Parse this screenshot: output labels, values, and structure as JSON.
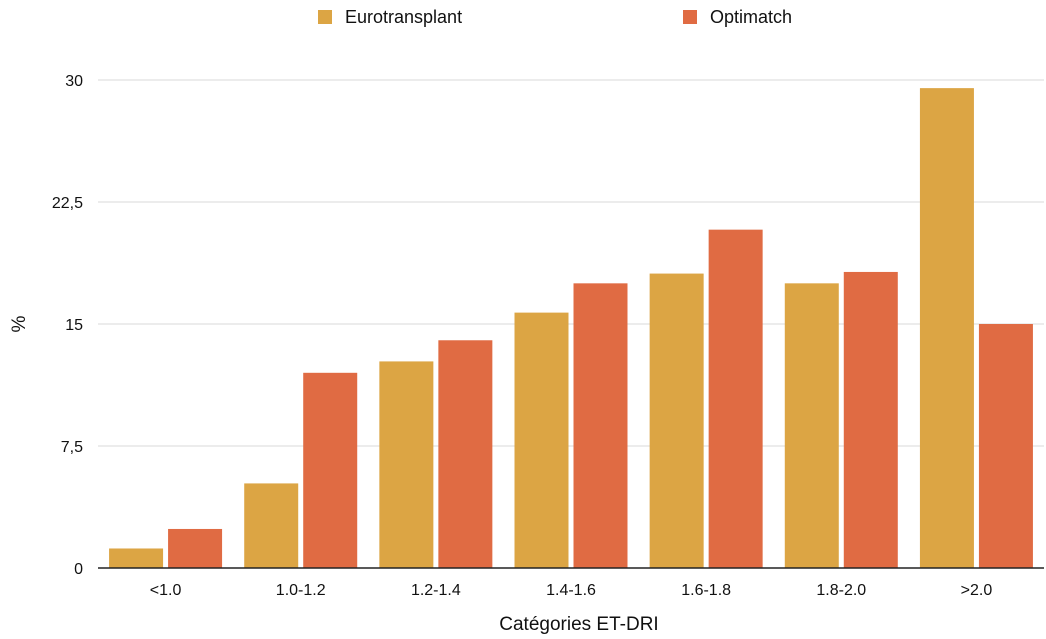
{
  "chart_data": {
    "type": "bar",
    "title": "",
    "xlabel": "Catégories ET-DRI",
    "ylabel": "%",
    "categories": [
      "<1.0",
      "1.0-1.2",
      "1.2-1.4",
      "1.4-1.6",
      "1.6-1.8",
      "1.8-2.0",
      ">2.0"
    ],
    "series": [
      {
        "name": "Eurotransplant",
        "color": "#dca544",
        "values": [
          1.2,
          5.2,
          12.7,
          15.7,
          18.1,
          17.5,
          29.5
        ]
      },
      {
        "name": "Optimatch",
        "color": "#e06b43",
        "values": [
          2.4,
          12.0,
          14.0,
          17.5,
          20.8,
          18.2,
          15.0
        ]
      }
    ],
    "ylim": [
      0,
      30
    ],
    "yticks": [
      0,
      7.5,
      15,
      22.5,
      30
    ],
    "ytick_labels": [
      "0",
      "7,5",
      "15",
      "22,5",
      "30"
    ],
    "grid": true,
    "legend_position": "top"
  }
}
